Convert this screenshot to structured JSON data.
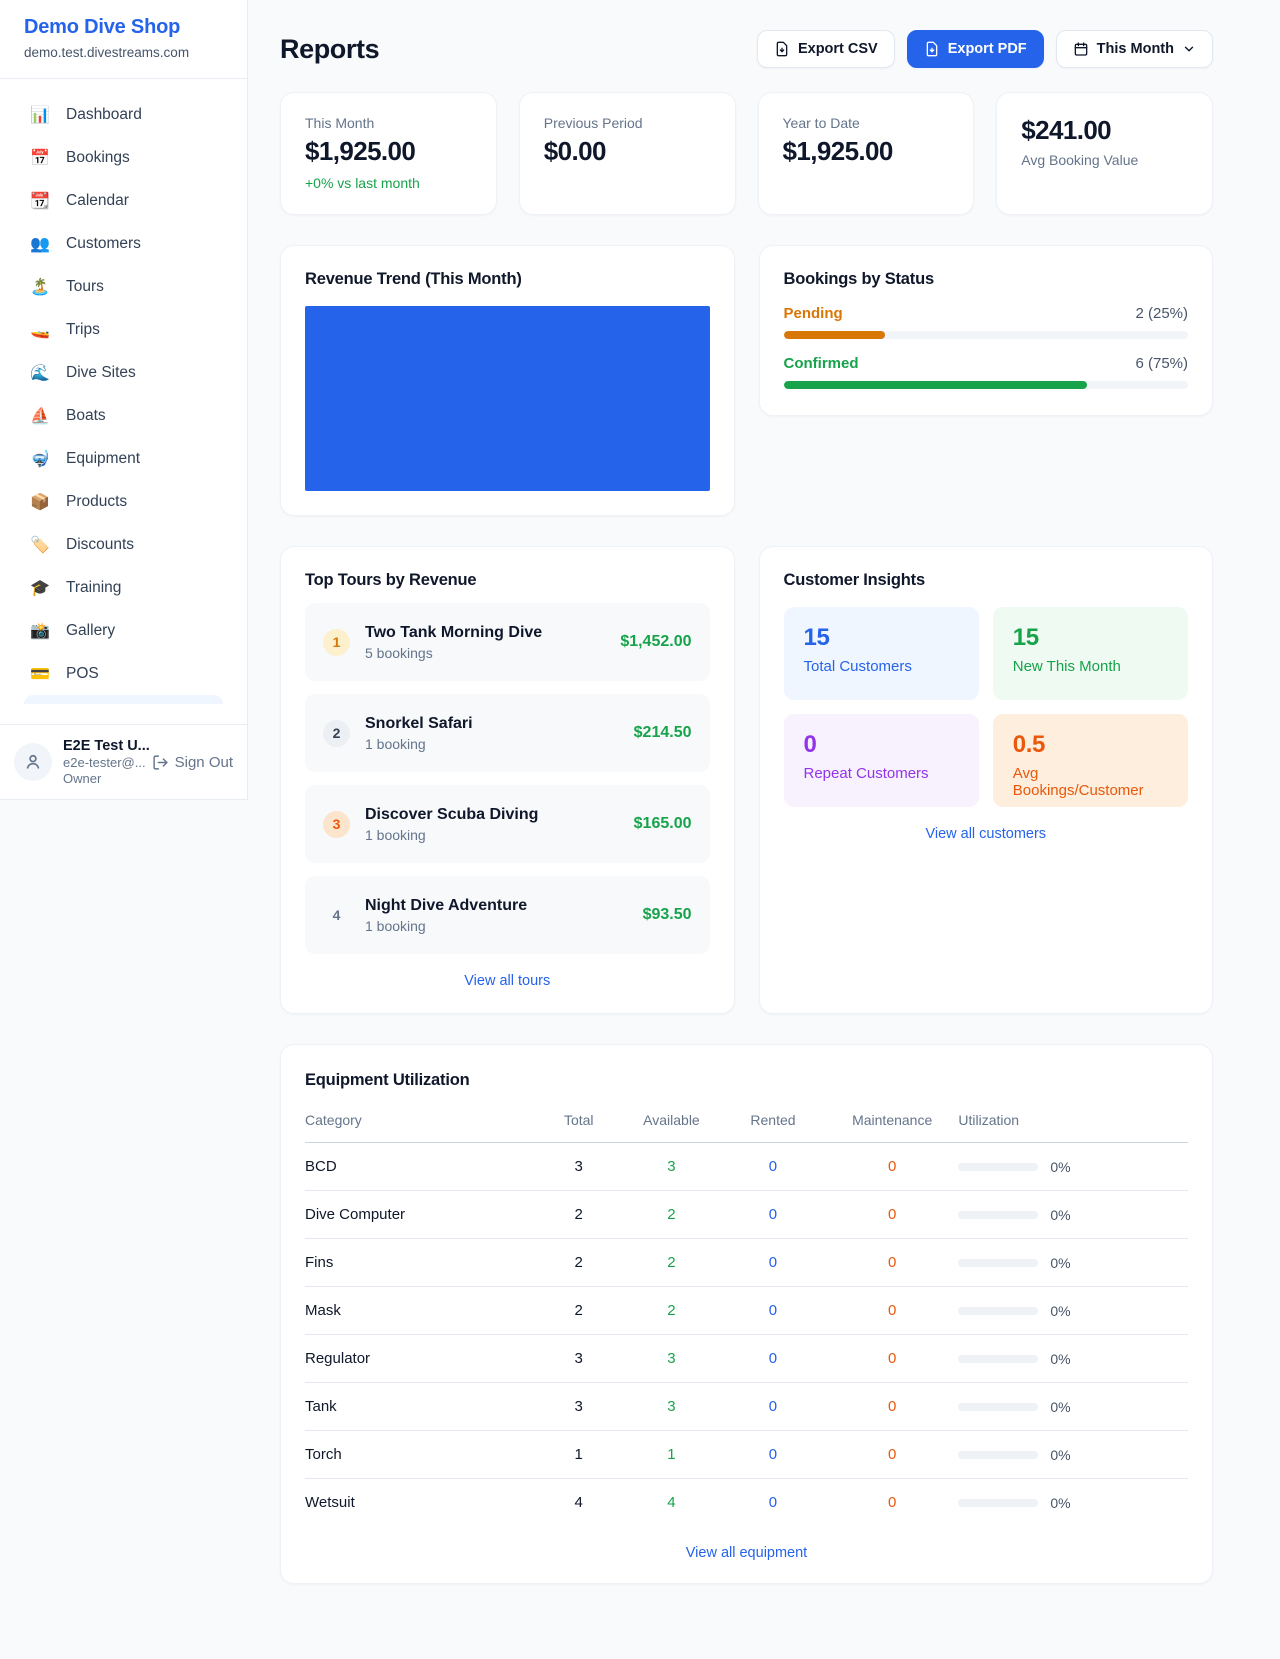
{
  "colors": {
    "primary_blue": "#2563eb",
    "green": "#16a34a",
    "pending_orange": "#d97706",
    "maintenance_orange": "#ea580c",
    "purple": "#9333ea"
  },
  "sidebar": {
    "shop_name": "Demo Dive Shop",
    "domain": "demo.test.divestreams.com",
    "items": [
      {
        "icon": "📊",
        "label": "Dashboard"
      },
      {
        "icon": "📅",
        "label": "Bookings"
      },
      {
        "icon": "📆",
        "label": "Calendar"
      },
      {
        "icon": "👥",
        "label": "Customers"
      },
      {
        "icon": "🏝️",
        "label": "Tours"
      },
      {
        "icon": "🚤",
        "label": "Trips"
      },
      {
        "icon": "🌊",
        "label": "Dive Sites"
      },
      {
        "icon": "⛵",
        "label": "Boats"
      },
      {
        "icon": "🤿",
        "label": "Equipment"
      },
      {
        "icon": "📦",
        "label": "Products"
      },
      {
        "icon": "🏷️",
        "label": "Discounts"
      },
      {
        "icon": "🎓",
        "label": "Training"
      },
      {
        "icon": "📸",
        "label": "Gallery"
      },
      {
        "icon": "💳",
        "label": "POS"
      }
    ],
    "user": {
      "name": "E2E Test U...",
      "email": "e2e-tester@...",
      "role": "Owner",
      "sign_out": "Sign Out"
    }
  },
  "header": {
    "title": "Reports",
    "export_csv": "Export CSV",
    "export_pdf": "Export PDF",
    "period": "This Month"
  },
  "stats": [
    {
      "label": "This Month",
      "value": "$1,925.00",
      "delta": "+0% vs last month"
    },
    {
      "label": "Previous Period",
      "value": "$0.00"
    },
    {
      "label": "Year to Date",
      "value": "$1,925.00"
    },
    {
      "label": "Avg Booking Value",
      "value": "$241.00"
    }
  ],
  "revenue_trend": {
    "title": "Revenue Trend (This Month)",
    "bar_color": "#2563eb"
  },
  "bookings_by_status": {
    "title": "Bookings by Status",
    "rows": [
      {
        "label": "Pending",
        "display": "2 (25%)",
        "count": 2,
        "pct": 25,
        "color": "#d97706"
      },
      {
        "label": "Confirmed",
        "display": "6 (75%)",
        "count": 6,
        "pct": 75,
        "color": "#16a34a"
      }
    ]
  },
  "top_tours": {
    "title": "Top Tours by Revenue",
    "rows": [
      {
        "rank": "1",
        "name": "Two Tank Morning Dive",
        "bookings": "5 bookings",
        "revenue": "$1,452.00"
      },
      {
        "rank": "2",
        "name": "Snorkel Safari",
        "bookings": "1 booking",
        "revenue": "$214.50"
      },
      {
        "rank": "3",
        "name": "Discover Scuba Diving",
        "bookings": "1 booking",
        "revenue": "$165.00"
      },
      {
        "rank": "4",
        "name": "Night Dive Adventure",
        "bookings": "1 booking",
        "revenue": "$93.50"
      }
    ],
    "view_all": "View all tours"
  },
  "customer_insights": {
    "title": "Customer Insights",
    "tiles": [
      {
        "value": "15",
        "label": "Total Customers",
        "fg": "#2563eb",
        "bg": "#eff6ff"
      },
      {
        "value": "15",
        "label": "New This Month",
        "fg": "#16a34a",
        "bg": "#effaf3"
      },
      {
        "value": "0",
        "label": "Repeat Customers",
        "fg": "#9333ea",
        "bg": "#f7f2fd"
      },
      {
        "value": "0.5",
        "label": "Avg Bookings/Customer",
        "fg": "#ea580c",
        "bg": "#fdeedd"
      }
    ],
    "view_all": "View all customers"
  },
  "equipment": {
    "title": "Equipment Utilization",
    "columns": [
      "Category",
      "Total",
      "Available",
      "Rented",
      "Maintenance",
      "Utilization"
    ],
    "rows": [
      {
        "category": "BCD",
        "total": "3",
        "available": "3",
        "rented": "0",
        "maintenance": "0",
        "utilization": "0%",
        "util_pct": 0
      },
      {
        "category": "Dive Computer",
        "total": "2",
        "available": "2",
        "rented": "0",
        "maintenance": "0",
        "utilization": "0%",
        "util_pct": 0
      },
      {
        "category": "Fins",
        "total": "2",
        "available": "2",
        "rented": "0",
        "maintenance": "0",
        "utilization": "0%",
        "util_pct": 0
      },
      {
        "category": "Mask",
        "total": "2",
        "available": "2",
        "rented": "0",
        "maintenance": "0",
        "utilization": "0%",
        "util_pct": 0
      },
      {
        "category": "Regulator",
        "total": "3",
        "available": "3",
        "rented": "0",
        "maintenance": "0",
        "utilization": "0%",
        "util_pct": 0
      },
      {
        "category": "Tank",
        "total": "3",
        "available": "3",
        "rented": "0",
        "maintenance": "0",
        "utilization": "0%",
        "util_pct": 0
      },
      {
        "category": "Torch",
        "total": "1",
        "available": "1",
        "rented": "0",
        "maintenance": "0",
        "utilization": "0%",
        "util_pct": 0
      },
      {
        "category": "Wetsuit",
        "total": "4",
        "available": "4",
        "rented": "0",
        "maintenance": "0",
        "utilization": "0%",
        "util_pct": 0
      }
    ],
    "view_all": "View all equipment"
  }
}
